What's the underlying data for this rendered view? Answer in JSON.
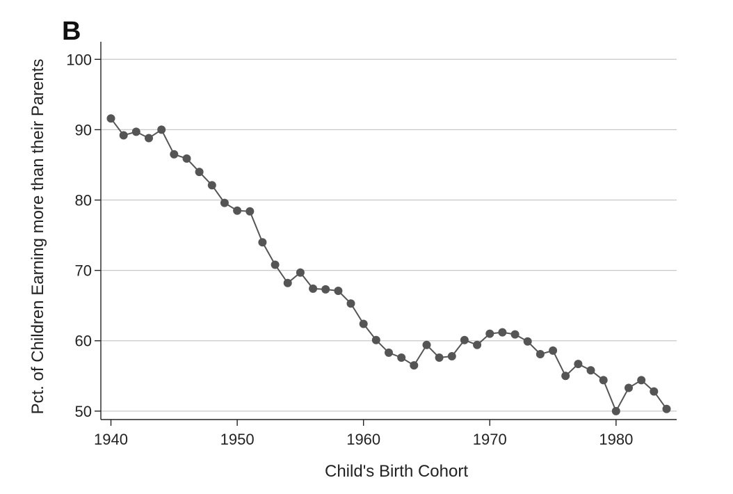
{
  "chart_data": {
    "type": "line",
    "panel_label": "B",
    "xlabel": "Child's Birth Cohort",
    "ylabel": "Pct. of Children Earning more than their Parents",
    "xlim": [
      1939.2,
      1984.8
    ],
    "ylim": [
      48.8,
      102.5
    ],
    "xticks": [
      1940,
      1950,
      1960,
      1970,
      1980
    ],
    "yticks": [
      50,
      60,
      70,
      80,
      90,
      100
    ],
    "grid": true,
    "colors": {
      "line": "#555555",
      "marker": "#555555",
      "grid": "#c8c8c8",
      "axis": "#222222"
    },
    "series": [
      {
        "x": [
          1940,
          1941,
          1942,
          1943,
          1944,
          1945,
          1946,
          1947,
          1948,
          1949,
          1950,
          1951,
          1952,
          1953,
          1954,
          1955,
          1956,
          1957,
          1958,
          1959,
          1960,
          1961,
          1962,
          1963,
          1964,
          1965,
          1966,
          1967,
          1968,
          1969,
          1970,
          1971,
          1972,
          1973,
          1974,
          1975,
          1976,
          1977,
          1978,
          1979,
          1980,
          1981,
          1982,
          1983,
          1984
        ],
        "y": [
          91.6,
          89.2,
          89.7,
          88.8,
          90.0,
          86.5,
          85.9,
          84.0,
          82.1,
          79.6,
          78.5,
          78.4,
          74.0,
          70.8,
          68.2,
          69.7,
          67.4,
          67.3,
          67.1,
          65.3,
          62.4,
          60.1,
          58.3,
          57.6,
          56.5,
          59.4,
          57.6,
          57.8,
          60.1,
          59.4,
          61.0,
          61.2,
          60.9,
          59.9,
          58.1,
          58.6,
          55.0,
          56.7,
          55.8,
          54.4,
          50.0,
          53.3,
          54.4,
          52.8,
          50.3
        ]
      }
    ]
  }
}
